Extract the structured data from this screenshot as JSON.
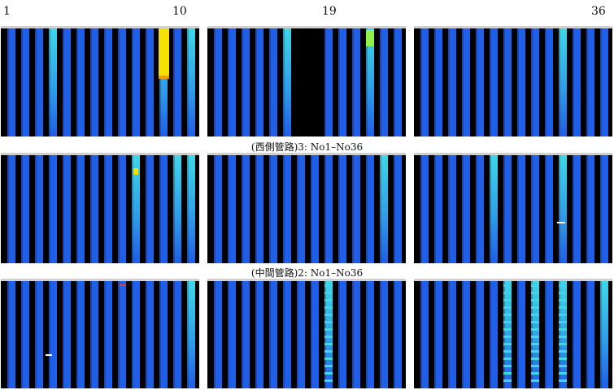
{
  "labels": {
    "n1": "1",
    "n10": "10",
    "n19": "19",
    "n36": "36"
  },
  "captions": {
    "row1": "(西側管路)3: No1–No36",
    "row2": "(中間管路)2: No1–No36"
  },
  "colors": {
    "background": "#000000",
    "base_blue": "#1f5ee6",
    "cyan": "#3fd6e8",
    "yellow": "#f5e100",
    "orange": "#f59a00",
    "green": "#8ff04a"
  },
  "panels": [
    {
      "id": "r1c1",
      "highlights": [
        3,
        11,
        13
      ]
    },
    {
      "id": "r1c2",
      "highlights": [
        5,
        11
      ]
    },
    {
      "id": "r1c3",
      "highlights": [
        10
      ]
    },
    {
      "id": "r2c1",
      "highlights": [
        9,
        12,
        13
      ]
    },
    {
      "id": "r2c2",
      "highlights": [
        12
      ]
    },
    {
      "id": "r2c3",
      "highlights": [
        5,
        10
      ]
    },
    {
      "id": "r3c1",
      "highlights": [
        13
      ]
    },
    {
      "id": "r3c2",
      "highlights": [
        8
      ]
    },
    {
      "id": "r3c3",
      "highlights": [
        6,
        8,
        10,
        13
      ]
    }
  ]
}
